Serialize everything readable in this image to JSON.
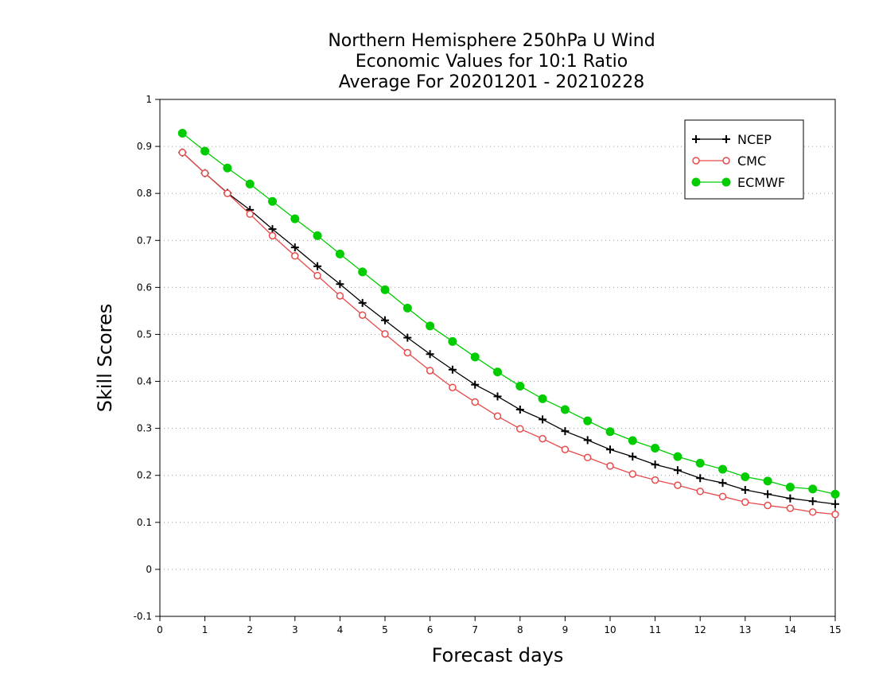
{
  "chart_data": {
    "type": "line",
    "title_lines": [
      "Northern Hemisphere 250hPa U Wind",
      "Economic Values for 10:1 Ratio",
      "Average For 20201201 - 20210228"
    ],
    "xlabel": "Forecast days",
    "ylabel": "Skill Scores",
    "xlim": [
      0,
      15
    ],
    "ylim": [
      -0.1,
      1
    ],
    "x_ticks": [
      "0",
      "1",
      "2",
      "3",
      "4",
      "5",
      "6",
      "7",
      "8",
      "9",
      "10",
      "11",
      "12",
      "13",
      "14",
      "15"
    ],
    "y_ticks": [
      "-0.1",
      "0",
      "0.1",
      "0.2",
      "0.3",
      "0.4",
      "0.5",
      "0.6",
      "0.7",
      "0.8",
      "0.9",
      "1"
    ],
    "grid": true,
    "legend_position": "top-right",
    "x": [
      0.5,
      1,
      1.5,
      2,
      2.5,
      3,
      3.5,
      4,
      4.5,
      5,
      5.5,
      6,
      6.5,
      7,
      7.5,
      8,
      8.5,
      9,
      9.5,
      10,
      10.5,
      11,
      11.5,
      12,
      12.5,
      13,
      13.5,
      14,
      14.5,
      15
    ],
    "series": [
      {
        "name": "NCEP",
        "color": "#000000",
        "marker": "plus",
        "values": [
          0.887,
          0.843,
          0.801,
          0.765,
          0.724,
          0.685,
          0.645,
          0.607,
          0.567,
          0.53,
          0.493,
          0.458,
          0.425,
          0.393,
          0.368,
          0.34,
          0.319,
          0.294,
          0.275,
          0.255,
          0.24,
          0.223,
          0.211,
          0.194,
          0.184,
          0.169,
          0.16,
          0.151,
          0.145,
          0.139
        ]
      },
      {
        "name": "CMC",
        "color": "#e84a4a",
        "marker": "open-circle",
        "values": [
          0.887,
          0.843,
          0.8,
          0.756,
          0.71,
          0.667,
          0.625,
          0.582,
          0.541,
          0.501,
          0.461,
          0.423,
          0.387,
          0.356,
          0.326,
          0.299,
          0.278,
          0.255,
          0.238,
          0.22,
          0.203,
          0.19,
          0.179,
          0.166,
          0.155,
          0.143,
          0.136,
          0.13,
          0.122,
          0.117
        ]
      },
      {
        "name": "ECMWF",
        "color": "#00cc00",
        "marker": "filled-circle",
        "values": [
          0.928,
          0.89,
          0.854,
          0.82,
          0.783,
          0.746,
          0.71,
          0.671,
          0.633,
          0.595,
          0.556,
          0.518,
          0.485,
          0.452,
          0.42,
          0.39,
          0.363,
          0.34,
          0.316,
          0.293,
          0.274,
          0.258,
          0.24,
          0.226,
          0.213,
          0.197,
          0.188,
          0.175,
          0.171,
          0.16
        ]
      }
    ]
  }
}
